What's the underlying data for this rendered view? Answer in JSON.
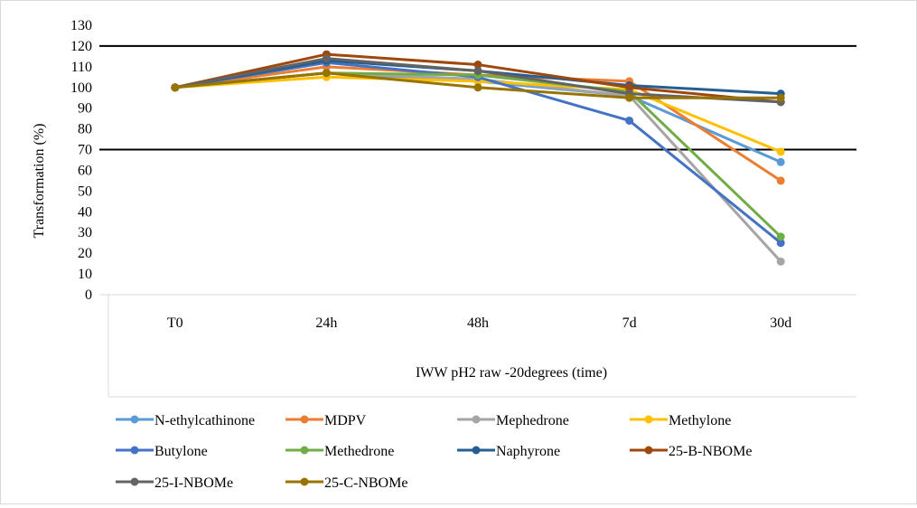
{
  "chart_data": {
    "type": "line",
    "title": "",
    "ylabel": "Transformation (%)",
    "xlabel": "IWW  pH2 raw -20degrees (time)",
    "categories": [
      "T0",
      "24h",
      "48h",
      "7d",
      "30d"
    ],
    "ylim": [
      0,
      130
    ],
    "yticks": [
      0,
      10,
      20,
      30,
      40,
      50,
      60,
      70,
      80,
      90,
      100,
      110,
      120,
      130
    ],
    "reference_lines": [
      120,
      70
    ],
    "grid": false,
    "legend_position": "bottom",
    "series": [
      {
        "name": "N-ethylcathinone",
        "color": "#5b9bd5",
        "values": [
          100,
          107,
          103,
          96,
          64
        ]
      },
      {
        "name": "MDPV",
        "color": "#ed7d31",
        "values": [
          100,
          110,
          106,
          103,
          55
        ]
      },
      {
        "name": "Mephedrone",
        "color": "#a5a5a5",
        "values": [
          100,
          107,
          104,
          96,
          16
        ]
      },
      {
        "name": "Methylone",
        "color": "#ffc000",
        "values": [
          100,
          105,
          103,
          99,
          69
        ]
      },
      {
        "name": "Butylone",
        "color": "#4472c4",
        "values": [
          100,
          112,
          105,
          84,
          25
        ]
      },
      {
        "name": "Methedrone",
        "color": "#70ad47",
        "values": [
          100,
          107,
          106,
          98,
          28
        ]
      },
      {
        "name": "Naphyrone",
        "color": "#255e91",
        "values": [
          100,
          113,
          108,
          101,
          97
        ]
      },
      {
        "name": "25-B-NBOMe",
        "color": "#9e480e",
        "values": [
          100,
          116,
          111,
          100,
          93
        ]
      },
      {
        "name": "25-I-NBOMe",
        "color": "#636363",
        "values": [
          100,
          114,
          108,
          97,
          93
        ]
      },
      {
        "name": "25-C-NBOMe",
        "color": "#997300",
        "values": [
          100,
          107,
          100,
          95,
          95
        ]
      }
    ]
  }
}
